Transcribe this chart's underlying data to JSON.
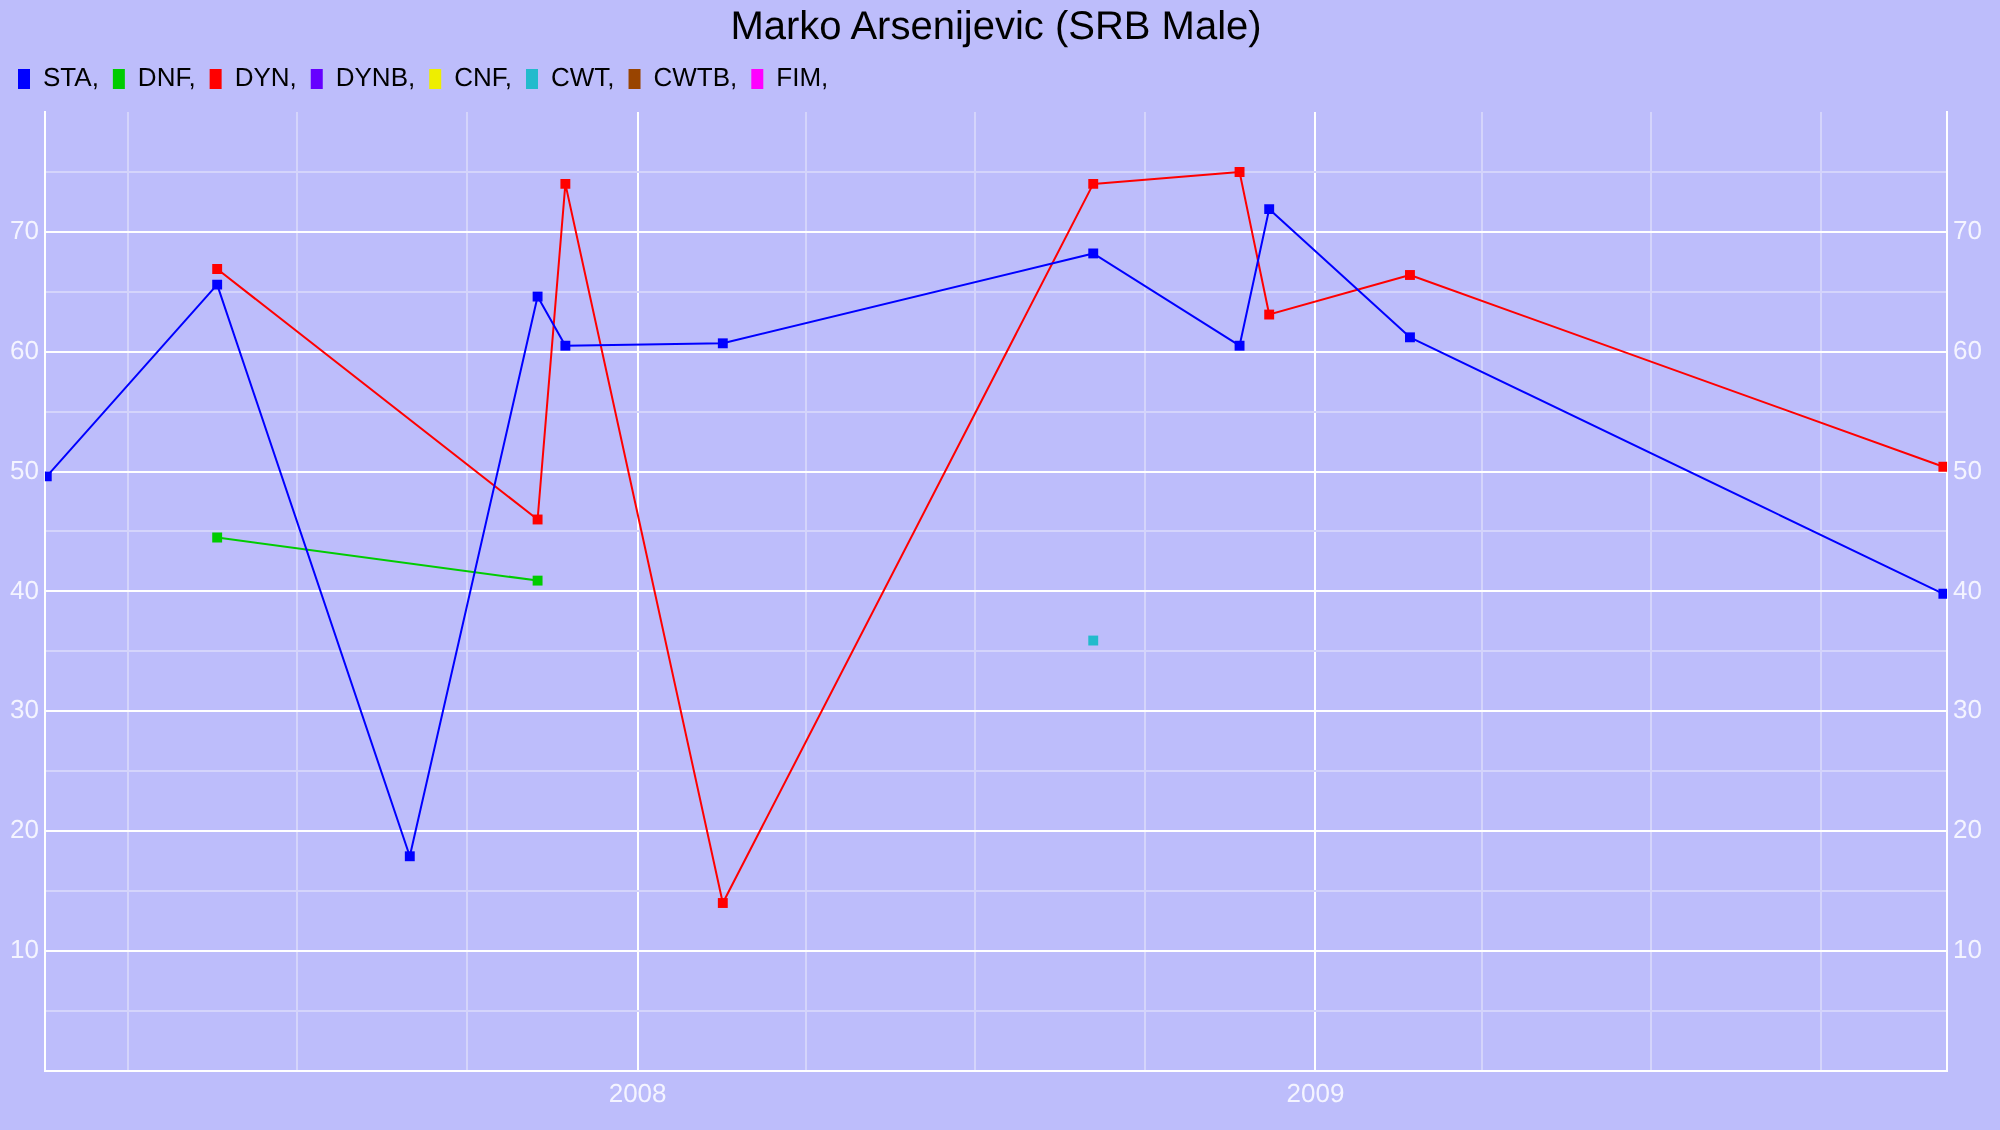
{
  "chart_data": {
    "type": "line",
    "title": "Marko Arsenijevic (SRB Male)",
    "marker": "square",
    "grid": true,
    "legend": "top left",
    "xlim": [
      "2007-02-15",
      "2009-12-08"
    ],
    "xticks": [
      {
        "value": "2007-04",
        "label": null
      },
      {
        "value": "2007-07",
        "label": null
      },
      {
        "value": "2007-10",
        "label": null
      },
      {
        "value": "2008",
        "label": "2008"
      },
      {
        "value": "2008-04",
        "label": null
      },
      {
        "value": "2008-07",
        "label": null
      },
      {
        "value": "2008-10",
        "label": null
      },
      {
        "value": "2009",
        "label": "2009"
      },
      {
        "value": "2009-04",
        "label": null
      },
      {
        "value": "2009-07",
        "label": null
      },
      {
        "value": "2009-10",
        "label": null
      }
    ],
    "ylim": [
      0,
      80
    ],
    "yticks": [
      {
        "value": 5,
        "label": null
      },
      10,
      {
        "value": 15,
        "label": null
      },
      20,
      {
        "value": 25,
        "label": null
      },
      30,
      {
        "value": 35,
        "label": null
      },
      40,
      {
        "value": 45,
        "label": null
      },
      50,
      {
        "value": 55,
        "label": null
      },
      60,
      {
        "value": 65,
        "label": null
      },
      70,
      {
        "value": 75,
        "label": null
      }
    ],
    "y2lim": [
      0,
      80
    ],
    "y2ticks": [
      10,
      20,
      30,
      40,
      50,
      60,
      70
    ],
    "series": [
      {
        "name": "STA,",
        "color": "#0000ff",
        "x": [
          "2007-02-16",
          "2007-05-19",
          "2007-08-31",
          "2007-11-08",
          "2007-11-23",
          "2008-02-16",
          "2008-09-03",
          "2008-11-21",
          "2008-12-07",
          "2009-02-21",
          "2009-12-06"
        ],
        "values": [
          49.6,
          65.6,
          17.9,
          64.6,
          60.5,
          60.7,
          68.2,
          60.5,
          71.9,
          61.2,
          39.8
        ]
      },
      {
        "name": "DNF,",
        "color": "#00cc00",
        "x": [
          "2007-05-19",
          "2007-11-08"
        ],
        "values": [
          44.5,
          40.9
        ]
      },
      {
        "name": "DYN,",
        "color": "#ff0000",
        "x": [
          "2007-05-19",
          "2007-11-08",
          "2007-11-23",
          "2008-02-16",
          "2008-09-03",
          "2008-11-21",
          "2008-12-07",
          "2009-02-21",
          "2009-12-06"
        ],
        "values": [
          66.9,
          46.0,
          74.0,
          14.0,
          74.0,
          75.0,
          63.1,
          66.4,
          50.4
        ]
      },
      {
        "name": "DYNB,",
        "color": "#6600ff"
      },
      {
        "name": "CNF,",
        "color": "#eeee00"
      },
      {
        "name": "CWT,",
        "color": "#22bbcc",
        "x": [
          "2008-09-03"
        ],
        "values": [
          35.9
        ]
      },
      {
        "name": "CWTB,",
        "color": "#994400"
      },
      {
        "name": "FIM,",
        "color": "#ff00ff"
      }
    ]
  }
}
